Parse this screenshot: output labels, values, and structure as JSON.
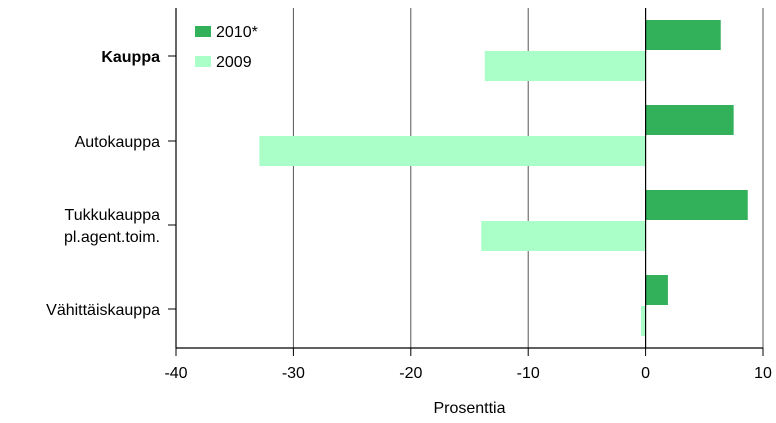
{
  "chart_data": {
    "type": "bar",
    "orientation": "horizontal",
    "categories": [
      {
        "lines": [
          "Kauppa"
        ],
        "bold": true
      },
      {
        "lines": [
          "Autokauppa"
        ],
        "bold": false
      },
      {
        "lines": [
          "Tukkukauppa",
          "pl.agent.toim."
        ],
        "bold": false
      },
      {
        "lines": [
          "Vähittäiskauppa"
        ],
        "bold": false
      }
    ],
    "series": [
      {
        "name": "2010*",
        "color": "#33b05a",
        "values": [
          6.4,
          7.5,
          8.7,
          1.9
        ]
      },
      {
        "name": "2009",
        "color": "#aaffc8",
        "values": [
          -13.7,
          -32.9,
          -14.0,
          -0.4
        ]
      }
    ],
    "xlabel": "Prosenttia",
    "xlim": [
      -40,
      10
    ],
    "xticks": [
      -40,
      -30,
      -20,
      -10,
      0,
      10
    ],
    "grid": "vertical",
    "legend": "top-left"
  }
}
